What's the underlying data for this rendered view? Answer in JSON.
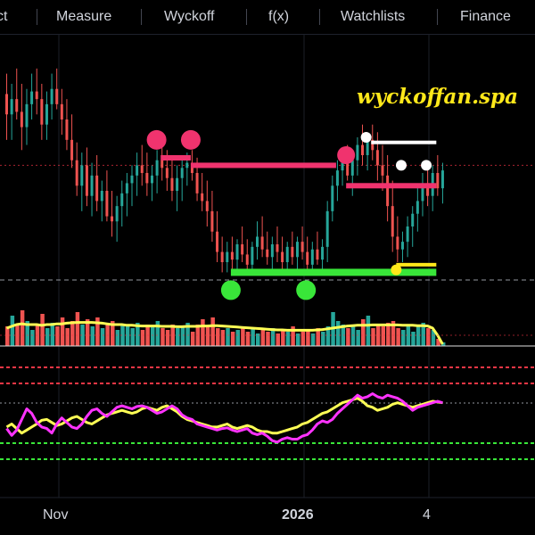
{
  "toolbar": {
    "items": [
      {
        "label": "ct"
      },
      {
        "label": "Measure"
      },
      {
        "label": "Wyckoff"
      },
      {
        "label": "f(x)"
      },
      {
        "label": "Watchlists"
      },
      {
        "label": "Finance"
      }
    ]
  },
  "watermark": "wyckoffan.spa",
  "colors": {
    "background": "#000000",
    "up_candle": "#26a69a",
    "down_candle": "#ef5350",
    "resistance": "#f0336e",
    "support": "#39e639",
    "high_marker": "#ffffff",
    "low_marker": "#ffe81a",
    "volume_ma": "#ffff55",
    "oscillator_fast": "#ff33ff",
    "oscillator_slow": "#ffff55",
    "dashed_red": "#f23645",
    "dashed_green": "#39e639"
  },
  "chart_data": [
    {
      "type": "candlestick",
      "x_ticks": [
        "Nov",
        "2026",
        "4"
      ],
      "bars": [
        {
          "o": 32,
          "h": 40,
          "l": 14,
          "c": 24
        },
        {
          "o": 24,
          "h": 36,
          "l": 14,
          "c": 30
        },
        {
          "o": 30,
          "h": 42,
          "l": 22,
          "c": 25
        },
        {
          "o": 25,
          "h": 36,
          "l": 10,
          "c": 19
        },
        {
          "o": 19,
          "h": 34,
          "l": 12,
          "c": 28
        },
        {
          "o": 28,
          "h": 40,
          "l": 22,
          "c": 33
        },
        {
          "o": 33,
          "h": 42,
          "l": 24,
          "c": 30
        },
        {
          "o": 30,
          "h": 36,
          "l": 14,
          "c": 20
        },
        {
          "o": 20,
          "h": 33,
          "l": 14,
          "c": 28
        },
        {
          "o": 28,
          "h": 40,
          "l": 22,
          "c": 34
        },
        {
          "o": 34,
          "h": 42,
          "l": 26,
          "c": 28
        },
        {
          "o": 28,
          "h": 34,
          "l": 16,
          "c": 22
        },
        {
          "o": 22,
          "h": 30,
          "l": 10,
          "c": 14
        },
        {
          "o": 14,
          "h": 24,
          "l": 3,
          "c": 6
        },
        {
          "o": 6,
          "h": 13,
          "l": -8,
          "c": -4
        },
        {
          "o": -4,
          "h": 9,
          "l": -14,
          "c": 4
        },
        {
          "o": 4,
          "h": 11,
          "l": -12,
          "c": -8
        },
        {
          "o": -8,
          "h": 5,
          "l": -16,
          "c": 0
        },
        {
          "o": 0,
          "h": 8,
          "l": -14,
          "c": -10
        },
        {
          "o": -10,
          "h": -2,
          "l": -18,
          "c": -6
        },
        {
          "o": -6,
          "h": 2,
          "l": -18,
          "c": -16
        },
        {
          "o": -16,
          "h": -6,
          "l": -24,
          "c": -18
        },
        {
          "o": -18,
          "h": -8,
          "l": -26,
          "c": -12
        },
        {
          "o": -12,
          "h": -2,
          "l": -20,
          "c": -7
        },
        {
          "o": -7,
          "h": 1,
          "l": -16,
          "c": -3
        },
        {
          "o": -3,
          "h": 4,
          "l": -12,
          "c": 0
        },
        {
          "o": 0,
          "h": 9,
          "l": -8,
          "c": 4
        },
        {
          "o": 4,
          "h": 12,
          "l": -4,
          "c": 1
        },
        {
          "o": 1,
          "h": 9,
          "l": -8,
          "c": -3
        },
        {
          "o": -3,
          "h": 4,
          "l": -10,
          "c": 0
        },
        {
          "o": 0,
          "h": 10,
          "l": -7,
          "c": 6
        },
        {
          "o": 6,
          "h": 13,
          "l": -2,
          "c": 3
        },
        {
          "o": 3,
          "h": 10,
          "l": -6,
          "c": -1
        },
        {
          "o": -1,
          "h": 6,
          "l": -10,
          "c": -6
        },
        {
          "o": -6,
          "h": 4,
          "l": -14,
          "c": -1
        },
        {
          "o": -1,
          "h": 7,
          "l": -10,
          "c": 3
        },
        {
          "o": 3,
          "h": 9,
          "l": -4,
          "c": 5
        },
        {
          "o": 5,
          "h": 10,
          "l": -2,
          "c": 1
        },
        {
          "o": 1,
          "h": 7,
          "l": -10,
          "c": -7
        },
        {
          "o": -7,
          "h": 1,
          "l": -14,
          "c": -10
        },
        {
          "o": -10,
          "h": -2,
          "l": -20,
          "c": -14
        },
        {
          "o": -14,
          "h": -6,
          "l": -26,
          "c": -22
        },
        {
          "o": -22,
          "h": -14,
          "l": -34,
          "c": -30
        },
        {
          "o": -30,
          "h": -24,
          "l": -38,
          "c": -34
        },
        {
          "o": -34,
          "h": -26,
          "l": -38,
          "c": -30
        },
        {
          "o": -30,
          "h": -24,
          "l": -37,
          "c": -33
        },
        {
          "o": -33,
          "h": -25,
          "l": -37,
          "c": -27
        },
        {
          "o": -27,
          "h": -20,
          "l": -34,
          "c": -31
        },
        {
          "o": -31,
          "h": -25,
          "l": -37,
          "c": -35
        },
        {
          "o": -35,
          "h": -26,
          "l": -38,
          "c": -28
        },
        {
          "o": -28,
          "h": -18,
          "l": -33,
          "c": -24
        },
        {
          "o": -24,
          "h": -16,
          "l": -32,
          "c": -29
        },
        {
          "o": -29,
          "h": -22,
          "l": -35,
          "c": -32
        },
        {
          "o": -32,
          "h": -24,
          "l": -37,
          "c": -27
        },
        {
          "o": -27,
          "h": -20,
          "l": -34,
          "c": -30
        },
        {
          "o": -30,
          "h": -24,
          "l": -37,
          "c": -34
        },
        {
          "o": -34,
          "h": -26,
          "l": -38,
          "c": -28
        },
        {
          "o": -28,
          "h": -22,
          "l": -35,
          "c": -32
        },
        {
          "o": -32,
          "h": -24,
          "l": -37,
          "c": -26
        },
        {
          "o": -26,
          "h": -20,
          "l": -33,
          "c": -30
        },
        {
          "o": -30,
          "h": -24,
          "l": -39,
          "c": -35
        },
        {
          "o": -35,
          "h": -26,
          "l": -37,
          "c": -29
        },
        {
          "o": -29,
          "h": -22,
          "l": -35,
          "c": -33
        },
        {
          "o": -33,
          "h": -25,
          "l": -37,
          "c": -28
        },
        {
          "o": -28,
          "h": -10,
          "l": -34,
          "c": -14
        },
        {
          "o": -14,
          "h": 0,
          "l": -18,
          "c": -4
        },
        {
          "o": -4,
          "h": 6,
          "l": -10,
          "c": 2
        },
        {
          "o": 2,
          "h": 8,
          "l": -4,
          "c": 5
        },
        {
          "o": 5,
          "h": 12,
          "l": -2,
          "c": 0
        },
        {
          "o": 0,
          "h": 9,
          "l": -8,
          "c": 6
        },
        {
          "o": 6,
          "h": 15,
          "l": 0,
          "c": 12
        },
        {
          "o": 12,
          "h": 20,
          "l": 4,
          "c": 8
        },
        {
          "o": 8,
          "h": 16,
          "l": 2,
          "c": 14
        },
        {
          "o": 14,
          "h": 20,
          "l": 6,
          "c": 10
        },
        {
          "o": 10,
          "h": 17,
          "l": -2,
          "c": 4
        },
        {
          "o": 4,
          "h": 12,
          "l": -6,
          "c": 0
        },
        {
          "o": 0,
          "h": 8,
          "l": -18,
          "c": -12
        },
        {
          "o": -12,
          "h": -2,
          "l": -30,
          "c": -24
        },
        {
          "o": -24,
          "h": -16,
          "l": -34,
          "c": -29
        },
        {
          "o": -29,
          "h": -22,
          "l": -34,
          "c": -26
        },
        {
          "o": -26,
          "h": -16,
          "l": -32,
          "c": -20
        },
        {
          "o": -20,
          "h": -12,
          "l": -28,
          "c": -15
        },
        {
          "o": -15,
          "h": -4,
          "l": -22,
          "c": -10
        },
        {
          "o": -10,
          "h": 1,
          "l": -16,
          "c": -3
        },
        {
          "o": -3,
          "h": 5,
          "l": -12,
          "c": -8
        },
        {
          "o": -8,
          "h": 4,
          "l": -14,
          "c": 1
        },
        {
          "o": 1,
          "h": 8,
          "l": -8,
          "c": -5
        },
        {
          "o": -5,
          "h": 5,
          "l": -11,
          "c": 2
        }
      ],
      "levels": {
        "resistance": 4,
        "support": -38,
        "dashed_low": -41,
        "resistance_upper": 9
      },
      "y_range": [
        -48,
        50
      ]
    },
    {
      "type": "bar",
      "name": "volume",
      "values": [
        0.55,
        0.85,
        0.6,
        1.0,
        0.7,
        0.45,
        0.6,
        0.9,
        0.5,
        0.65,
        0.55,
        0.8,
        0.5,
        0.7,
        0.95,
        0.6,
        0.75,
        0.55,
        0.8,
        0.5,
        0.65,
        0.7,
        0.45,
        0.6,
        0.55,
        0.5,
        0.65,
        0.45,
        0.6,
        0.55,
        0.7,
        0.5,
        0.45,
        0.6,
        0.5,
        0.55,
        0.65,
        0.4,
        0.6,
        0.75,
        0.55,
        0.8,
        0.5,
        0.45,
        0.5,
        0.4,
        0.45,
        0.55,
        0.4,
        0.5,
        0.35,
        0.45,
        0.4,
        0.5,
        0.35,
        0.45,
        0.4,
        0.55,
        0.35,
        0.4,
        0.45,
        0.35,
        0.5,
        0.4,
        0.55,
        0.95,
        0.7,
        0.6,
        0.5,
        0.55,
        0.45,
        0.75,
        0.85,
        0.5,
        0.6,
        0.55,
        0.65,
        0.7,
        0.5,
        0.45,
        0.55,
        0.4,
        0.6,
        0.65,
        0.5,
        0.45,
        0.2,
        0.1
      ],
      "ma": [
        0.5,
        0.55,
        0.6,
        0.62,
        0.6,
        0.6,
        0.6,
        0.58,
        0.6,
        0.6,
        0.62,
        0.62,
        0.64,
        0.65,
        0.66,
        0.66,
        0.66,
        0.66,
        0.65,
        0.64,
        0.62,
        0.6,
        0.6,
        0.6,
        0.58,
        0.58,
        0.57,
        0.56,
        0.56,
        0.56,
        0.56,
        0.55,
        0.55,
        0.55,
        0.54,
        0.54,
        0.55,
        0.55,
        0.55,
        0.56,
        0.56,
        0.57,
        0.57,
        0.56,
        0.55,
        0.54,
        0.53,
        0.52,
        0.51,
        0.5,
        0.49,
        0.48,
        0.47,
        0.46,
        0.45,
        0.45,
        0.44,
        0.44,
        0.44,
        0.44,
        0.44,
        0.44,
        0.45,
        0.46,
        0.48,
        0.5,
        0.52,
        0.54,
        0.56,
        0.57,
        0.58,
        0.58,
        0.58,
        0.59,
        0.59,
        0.59,
        0.59,
        0.59,
        0.59,
        0.58,
        0.58,
        0.58,
        0.57,
        0.57,
        0.56,
        0.5,
        0.3,
        0.05
      ]
    },
    {
      "type": "line",
      "name": "oscillator",
      "series": [
        {
          "values": [
            0.44,
            0.35,
            0.42,
            0.56,
            0.7,
            0.64,
            0.52,
            0.46,
            0.44,
            0.38,
            0.5,
            0.58,
            0.52,
            0.46,
            0.44,
            0.5,
            0.6,
            0.68,
            0.7,
            0.64,
            0.6,
            0.66,
            0.72,
            0.74,
            0.72,
            0.7,
            0.73,
            0.74,
            0.72,
            0.68,
            0.64,
            0.66,
            0.7,
            0.74,
            0.7,
            0.62,
            0.58,
            0.56,
            0.5,
            0.48,
            0.46,
            0.44,
            0.42,
            0.44,
            0.45,
            0.42,
            0.4,
            0.42,
            0.44,
            0.38,
            0.36,
            0.38,
            0.34,
            0.28,
            0.26,
            0.3,
            0.32,
            0.3,
            0.3,
            0.34,
            0.36,
            0.42,
            0.5,
            0.54,
            0.52,
            0.56,
            0.64,
            0.7,
            0.76,
            0.82,
            0.88,
            0.84,
            0.86,
            0.9,
            0.86,
            0.84,
            0.88,
            0.86,
            0.84,
            0.8,
            0.74,
            0.68,
            0.72,
            0.74,
            0.76,
            0.78,
            0.8,
            0.78
          ]
        },
        {
          "values": [
            0.46,
            0.5,
            0.44,
            0.38,
            0.42,
            0.46,
            0.5,
            0.55,
            0.56,
            0.52,
            0.48,
            0.5,
            0.54,
            0.58,
            0.6,
            0.56,
            0.52,
            0.5,
            0.54,
            0.58,
            0.62,
            0.64,
            0.66,
            0.68,
            0.66,
            0.64,
            0.66,
            0.7,
            0.72,
            0.7,
            0.68,
            0.72,
            0.74,
            0.7,
            0.66,
            0.6,
            0.56,
            0.54,
            0.52,
            0.5,
            0.48,
            0.46,
            0.46,
            0.48,
            0.5,
            0.46,
            0.44,
            0.46,
            0.48,
            0.46,
            0.42,
            0.4,
            0.4,
            0.38,
            0.38,
            0.4,
            0.42,
            0.44,
            0.46,
            0.5,
            0.52,
            0.56,
            0.6,
            0.64,
            0.66,
            0.7,
            0.74,
            0.78,
            0.8,
            0.82,
            0.84,
            0.8,
            0.74,
            0.72,
            0.68,
            0.7,
            0.72,
            0.76,
            0.78,
            0.76,
            0.74,
            0.72,
            0.74,
            0.76,
            0.78,
            0.8,
            0.79,
            0.78
          ]
        }
      ]
    }
  ]
}
